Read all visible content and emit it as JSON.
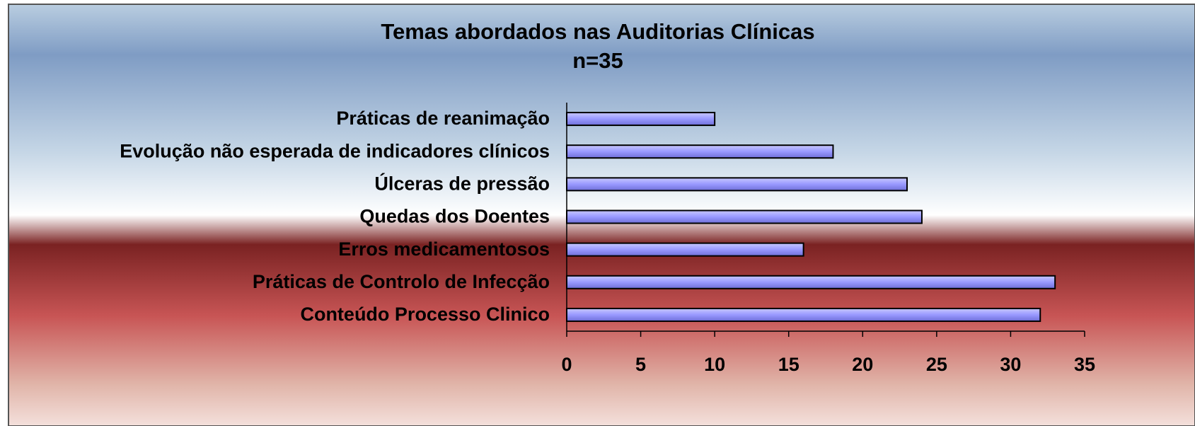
{
  "chart_data": {
    "type": "bar",
    "orientation": "horizontal",
    "title": "Temas abordados nas Auditorias Clínicas",
    "subtitle": "n=35",
    "categories": [
      "Práticas de reanimação",
      "Evolução não esperada de indicadores clínicos",
      "Úlceras de pressão",
      "Quedas dos Doentes",
      "Erros medicamentosos",
      "Práticas de Controlo de Infecção",
      "Conteúdo Processo Clinico"
    ],
    "values": [
      10,
      18,
      23,
      24,
      16,
      33,
      32
    ],
    "color": "#9999ff",
    "xlim": [
      0,
      35
    ],
    "xticks": [
      0,
      5,
      10,
      15,
      20,
      25,
      30,
      35
    ]
  }
}
